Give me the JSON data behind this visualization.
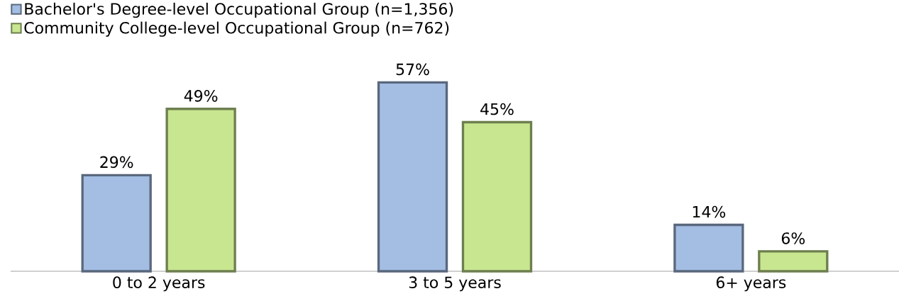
{
  "chart_data": {
    "type": "bar",
    "categories": [
      "0 to 2 years",
      "3 to 5 years",
      "6+ years"
    ],
    "series": [
      {
        "name": "Bachelor's Degree-level Occupational Group (n=1,356)",
        "color": "#a3bde3",
        "values": [
          29,
          57,
          14
        ],
        "value_labels": [
          "29%",
          "57%",
          "14%"
        ]
      },
      {
        "name": "Community College-level Occupational Group (n=762)",
        "color": "#c8e690",
        "values": [
          49,
          45,
          6
        ],
        "value_labels": [
          "49%",
          "45%",
          "6%"
        ]
      }
    ],
    "legend": "top left"
  }
}
